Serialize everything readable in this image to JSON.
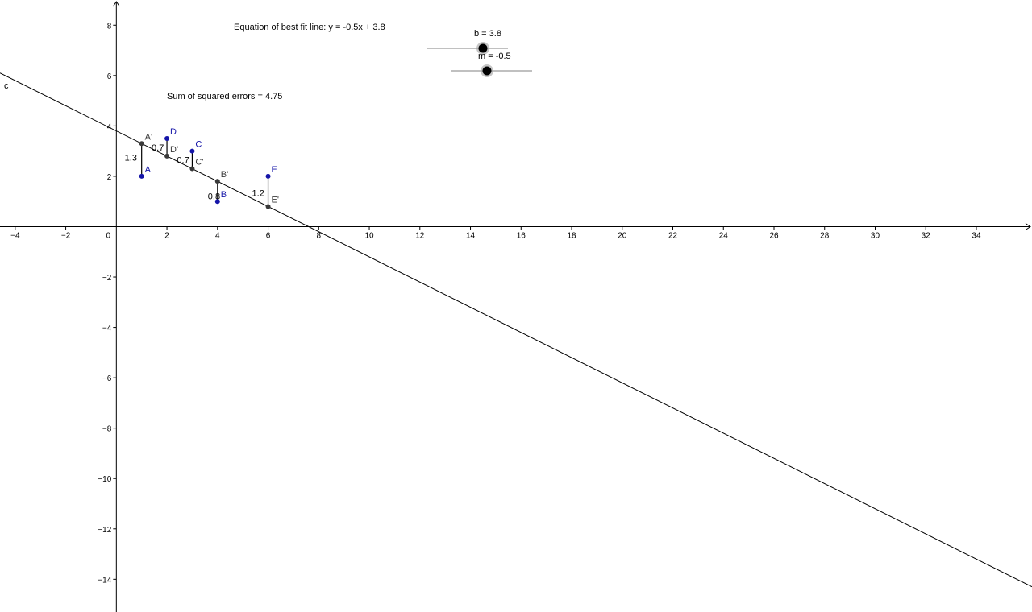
{
  "texts": {
    "equation": "Equation of best fit line: y = -0.5x + 3.8",
    "sse": "Sum of squared errors = 4.75",
    "line_label": "c"
  },
  "sliders": [
    {
      "name": "b",
      "label": "b = 3.8",
      "value": 3.8
    },
    {
      "name": "m",
      "label": "m = -0.5",
      "value": -0.5
    }
  ],
  "colors": {
    "data_point": "#1515a8",
    "fitted_point": "#3a3a3a",
    "axis": "#000000",
    "slider_knob": "#000000",
    "slider_track": "#808080"
  },
  "chart_data": {
    "type": "scatter",
    "xlim": [
      -4.6,
      36.2
    ],
    "ylim": [
      -15.3,
      9
    ],
    "x_ticks": [
      -4,
      -2,
      0,
      2,
      4,
      6,
      8,
      10,
      12,
      14,
      16,
      18,
      20,
      22,
      24,
      26,
      28,
      30,
      32,
      34
    ],
    "y_ticks": [
      -14,
      -12,
      -10,
      -8,
      -6,
      -4,
      -2,
      2,
      4,
      6,
      8
    ],
    "grid": false,
    "line": {
      "name": "c",
      "slope": -0.5,
      "intercept": 3.8
    },
    "points": [
      {
        "name": "A",
        "x": 1,
        "y": 2
      },
      {
        "name": "B",
        "x": 4,
        "y": 1
      },
      {
        "name": "C",
        "x": 3,
        "y": 3
      },
      {
        "name": "D",
        "x": 2,
        "y": 3.5
      },
      {
        "name": "E",
        "x": 6,
        "y": 2
      }
    ],
    "fitted_points": [
      {
        "name": "A'",
        "x": 1,
        "y": 3.3
      },
      {
        "name": "B'",
        "x": 4,
        "y": 1.8
      },
      {
        "name": "C'",
        "x": 3,
        "y": 2.3
      },
      {
        "name": "D'",
        "x": 2,
        "y": 2.8
      },
      {
        "name": "E'",
        "x": 6,
        "y": 0.8
      }
    ],
    "residual_labels": [
      {
        "point": "A",
        "text": "1.3"
      },
      {
        "point": "B",
        "text": "0.8"
      },
      {
        "point": "C",
        "text": "0.7"
      },
      {
        "point": "D",
        "text": "0.7"
      },
      {
        "point": "E",
        "text": "1.2"
      }
    ]
  }
}
